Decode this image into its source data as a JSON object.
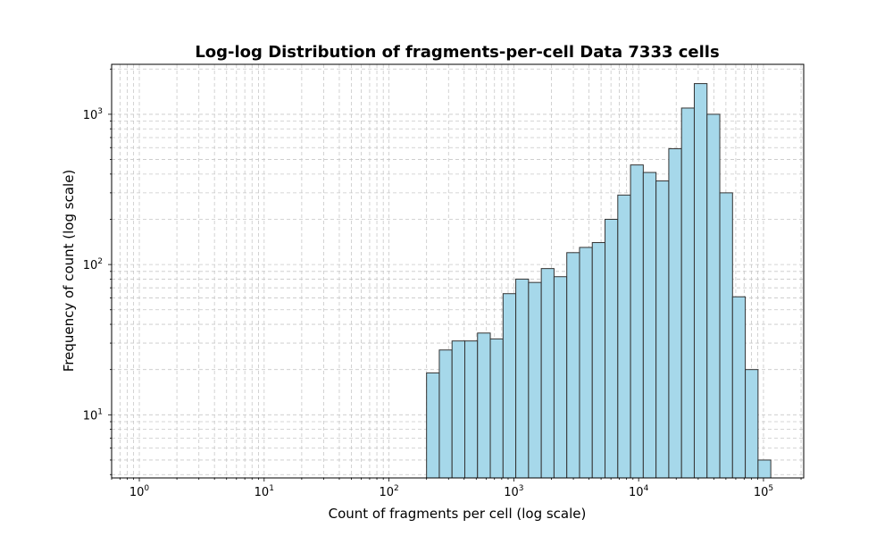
{
  "chart_data": {
    "type": "bar",
    "title": "Log-log Distribution of fragments-per-cell Data 7333 cells",
    "xlabel": "Count of fragments per cell (log scale)",
    "ylabel": "Frequency of count (log scale)",
    "xscale": "log",
    "yscale": "log",
    "xlim": [
      0.6,
      210000
    ],
    "ylim": [
      3.8,
      2150
    ],
    "grid": true,
    "xticks": [
      {
        "value": 1,
        "base": "10",
        "exp": "0"
      },
      {
        "value": 10,
        "base": "10",
        "exp": "1"
      },
      {
        "value": 100,
        "base": "10",
        "exp": "2"
      },
      {
        "value": 1000,
        "base": "10",
        "exp": "3"
      },
      {
        "value": 10000,
        "base": "10",
        "exp": "4"
      },
      {
        "value": 100000,
        "base": "10",
        "exp": "5"
      }
    ],
    "yticks": [
      {
        "value": 10,
        "base": "10",
        "exp": "1"
      },
      {
        "value": 100,
        "base": "10",
        "exp": "2"
      },
      {
        "value": 1000,
        "base": "10",
        "exp": "3"
      }
    ],
    "bin_edges": [
      200,
      253,
      320,
      405,
      512,
      648,
      820,
      1037,
      1312,
      1660,
      2100,
      2657,
      3361,
      4252,
      5380,
      6806,
      8610,
      10894,
      13781,
      17435,
      22058,
      27906,
      35305,
      44666,
      56508,
      71490,
      90445,
      114425
    ],
    "values": [
      19,
      27,
      31,
      31,
      35,
      32,
      64,
      80,
      76,
      94,
      83,
      120,
      130,
      140,
      200,
      290,
      460,
      410,
      360,
      590,
      1100,
      1600,
      1000,
      300,
      61,
      20,
      5
    ],
    "bar_color": "#a6d8ea",
    "edge_color": "#333333"
  }
}
